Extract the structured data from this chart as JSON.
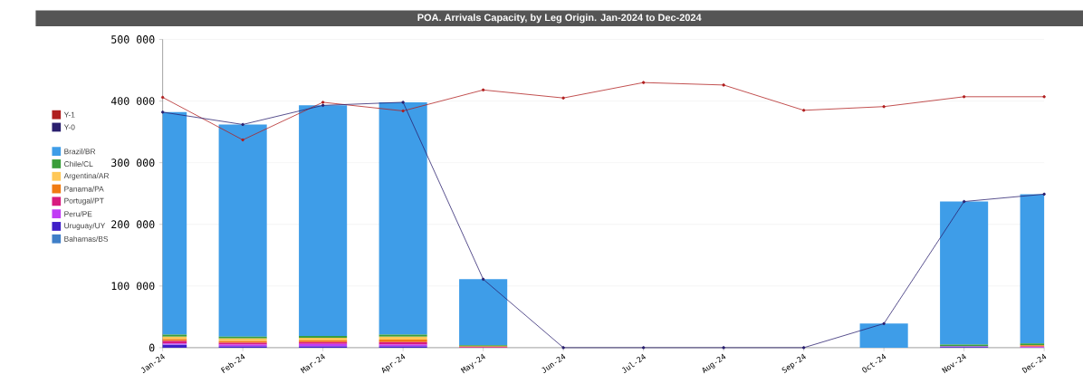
{
  "chart_data": {
    "type": "bar",
    "title": "POA. Arrivals Capacity, by Leg Origin. Jan-2024 to Dec-2024",
    "categories": [
      "Jan-24",
      "Feb-24",
      "Mar-24",
      "Apr-24",
      "May-24",
      "Jun-24",
      "Jul-24",
      "Aug-24",
      "Sep-24",
      "Oct-24",
      "Nov-24",
      "Dec-24"
    ],
    "stacked": true,
    "series": [
      {
        "name": "Bahamas/BS",
        "color": "#3f7fc8",
        "values": [
          0,
          0,
          0,
          0,
          0,
          0,
          0,
          0,
          0,
          0,
          0,
          0
        ]
      },
      {
        "name": "Uruguay/UY",
        "color": "#3f1fc8",
        "values": [
          5000,
          2000,
          2000,
          2000,
          0,
          0,
          0,
          0,
          0,
          0,
          1000,
          0
        ]
      },
      {
        "name": "Peru/PE",
        "color": "#c13cf5",
        "values": [
          2000,
          3000,
          4000,
          3000,
          0,
          0,
          0,
          0,
          0,
          0,
          1000,
          1000
        ]
      },
      {
        "name": "Portugal/PT",
        "color": "#d81b7f",
        "values": [
          4000,
          3000,
          3000,
          4000,
          1000,
          0,
          0,
          0,
          0,
          0,
          0,
          1000
        ]
      },
      {
        "name": "Panama/PA",
        "color": "#f07b12",
        "values": [
          3000,
          3000,
          3000,
          4000,
          1000,
          0,
          0,
          0,
          0,
          0,
          0,
          2000
        ]
      },
      {
        "name": "Argentina/AR",
        "color": "#ffc857",
        "values": [
          4000,
          4000,
          4000,
          5000,
          0,
          0,
          0,
          0,
          0,
          0,
          0,
          0
        ]
      },
      {
        "name": "Chile/CL",
        "color": "#3a9e3a",
        "values": [
          3000,
          3000,
          3000,
          3000,
          2000,
          0,
          0,
          0,
          0,
          0,
          3000,
          3000
        ]
      },
      {
        "name": "Brazil/BR",
        "color": "#3e9de8",
        "values": [
          361000,
          344000,
          374000,
          377000,
          107000,
          0,
          0,
          0,
          0,
          39000,
          232000,
          242000
        ]
      },
      {
        "name": "Y-1",
        "type": "line",
        "marker": "circle",
        "color": "#b01e1e",
        "values": [
          406000,
          337000,
          398000,
          384000,
          418000,
          405000,
          430000,
          426000,
          385000,
          391000,
          407000,
          407000
        ]
      },
      {
        "name": "Y-0",
        "type": "line",
        "marker": "circle",
        "color": "#2a1f6e",
        "values": [
          382000,
          362000,
          393000,
          398000,
          111000,
          0,
          0,
          0,
          0,
          39000,
          237000,
          249000
        ]
      }
    ],
    "ylim": [
      0,
      500000
    ],
    "yticks": [
      {
        "value": 0,
        "label": "0"
      },
      {
        "value": 100000,
        "label": "100 000"
      },
      {
        "value": 200000,
        "label": "200 000"
      },
      {
        "value": 300000,
        "label": "300 000"
      },
      {
        "value": 400000,
        "label": "400 000"
      },
      {
        "value": 500000,
        "label": "500 000"
      }
    ],
    "grid": "y",
    "legend": "left"
  }
}
